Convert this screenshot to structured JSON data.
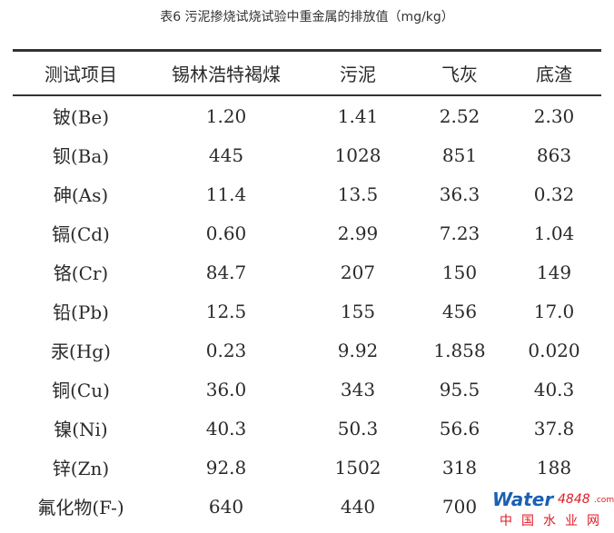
{
  "caption": "表6 污泥掺烧试烧试验中重金属的排放值（mg/kg）",
  "table": {
    "headers": [
      "测试项目",
      "锡林浩特褐煤",
      "污泥",
      "飞灰",
      "底渣"
    ],
    "rows": [
      [
        "铍(Be)",
        "1.20",
        "1.41",
        "2.52",
        "2.30"
      ],
      [
        "钡(Ba)",
        "445",
        "1028",
        "851",
        "863"
      ],
      [
        "砷(As)",
        "11.4",
        "13.5",
        "36.3",
        "0.32"
      ],
      [
        "镉(Cd)",
        "0.60",
        "2.99",
        "7.23",
        "1.04"
      ],
      [
        "铬(Cr)",
        "84.7",
        "207",
        "150",
        "149"
      ],
      [
        "铅(Pb)",
        "12.5",
        "155",
        "456",
        "17.0"
      ],
      [
        "汞(Hg)",
        "0.23",
        "9.92",
        "1.858",
        "0.020"
      ],
      [
        "铜(Cu)",
        "36.0",
        "343",
        "95.5",
        "40.3"
      ],
      [
        "镍(Ni)",
        "40.3",
        "50.3",
        "56.6",
        "37.8"
      ],
      [
        "锌(Zn)",
        "92.8",
        "1502",
        "318",
        "188"
      ],
      [
        "氟化物(F-)",
        "640",
        "440",
        "700",
        ""
      ]
    ]
  },
  "watermark": {
    "brand": "Water",
    "number": "4848",
    "suffix": ".com",
    "site": "中国水业网"
  }
}
